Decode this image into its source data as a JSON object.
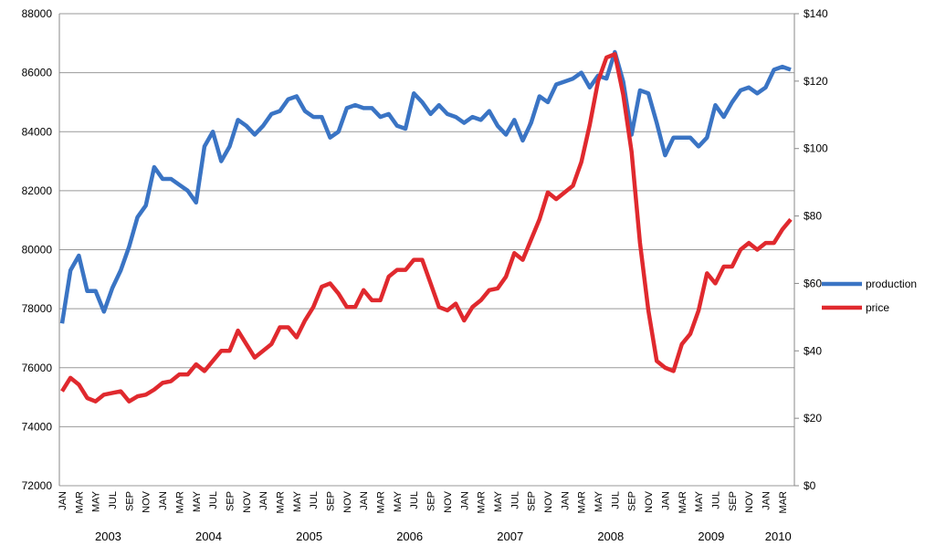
{
  "chart_data": {
    "type": "line",
    "categories": [
      "JAN",
      null,
      "MAR",
      null,
      "MAY",
      null,
      "JUL",
      null,
      "SEP",
      null,
      "NOV",
      null,
      "JAN",
      null,
      "MAR",
      null,
      "MAY",
      null,
      "JUL",
      null,
      "SEP",
      null,
      "NOV",
      null,
      "JAN",
      null,
      "MAR",
      null,
      "MAY",
      null,
      "JUL",
      null,
      "SEP",
      null,
      "NOV",
      null,
      "JAN",
      null,
      "MAR",
      null,
      "MAY",
      null,
      "JUL",
      null,
      "SEP",
      null,
      "NOV",
      null,
      "JAN",
      null,
      "MAR",
      null,
      "MAY",
      null,
      "JUL",
      null,
      "SEP",
      null,
      "NOV",
      null,
      "JAN",
      null,
      "MAR",
      null,
      "MAY",
      null,
      "JUL",
      null,
      "SEP",
      null,
      "NOV",
      null,
      "JAN",
      null,
      "MAR",
      null,
      "MAY",
      null,
      "JUL",
      null,
      "SEP",
      null,
      "NOV",
      null,
      "JAN",
      null,
      "MAR",
      null
    ],
    "years": [
      "2003",
      "2004",
      "2005",
      "2006",
      "2007",
      "2008",
      "2009",
      "2010"
    ],
    "series": [
      {
        "name": "production",
        "color": "#3a74c4",
        "values": [
          77500,
          79300,
          79800,
          78600,
          78600,
          77900,
          78700,
          79300,
          80100,
          81100,
          81500,
          82800,
          82400,
          82400,
          82200,
          82000,
          81600,
          83500,
          84000,
          83000,
          83500,
          84400,
          84200,
          83900,
          84200,
          84600,
          84700,
          85100,
          85200,
          84700,
          84500,
          84500,
          83800,
          84000,
          84800,
          84900,
          84800,
          84800,
          84500,
          84600,
          84200,
          84100,
          85300,
          85000,
          84600,
          84900,
          84600,
          84500,
          84300,
          84500,
          84400,
          84700,
          84200,
          83900,
          84400,
          83700,
          84300,
          85200,
          85000,
          85600,
          85700,
          85800,
          86000,
          85500,
          85900,
          85800,
          86700,
          85700,
          83900,
          85400,
          85300,
          84300,
          83200,
          83800,
          83800,
          83800,
          83500,
          83800,
          84900,
          84500,
          85000,
          85400,
          85500,
          85300,
          85500,
          86100,
          86200,
          86100
        ]
      },
      {
        "name": "price",
        "color": "#e0292e",
        "axis": "y2",
        "values": [
          28,
          32,
          30,
          26,
          25,
          27,
          27.5,
          28,
          25,
          26.5,
          27,
          28.5,
          30.5,
          31,
          33,
          33,
          36,
          34,
          37,
          40,
          40,
          46,
          42,
          38,
          40,
          42,
          47,
          47,
          44,
          49,
          53,
          59,
          60,
          57,
          53,
          53,
          58,
          55,
          55,
          62,
          64,
          64,
          67,
          67,
          60,
          53,
          52,
          54,
          49,
          53,
          55,
          58,
          58.5,
          62,
          69,
          67,
          73,
          79,
          87,
          85,
          87,
          89,
          96,
          107,
          120,
          127,
          128,
          116,
          99,
          72,
          52,
          37,
          35,
          34,
          42,
          45,
          52,
          63,
          60,
          65,
          65,
          70,
          72,
          70,
          72,
          72,
          76,
          79
        ]
      }
    ],
    "ylim": [
      72000,
      88000
    ],
    "yticks": [
      72000,
      74000,
      76000,
      78000,
      80000,
      82000,
      84000,
      86000,
      88000
    ],
    "y2lim": [
      0,
      140
    ],
    "y2ticks": [
      {
        "value": 0,
        "label": "$0"
      },
      {
        "value": 20,
        "label": "$20"
      },
      {
        "value": 40,
        "label": "$40"
      },
      {
        "value": 60,
        "label": "$60"
      },
      {
        "value": 80,
        "label": "$80"
      },
      {
        "value": 100,
        "label": "$100"
      },
      {
        "value": 120,
        "label": "$120"
      },
      {
        "value": 140,
        "label": "$140"
      }
    ],
    "grid": true,
    "legend": "right"
  }
}
